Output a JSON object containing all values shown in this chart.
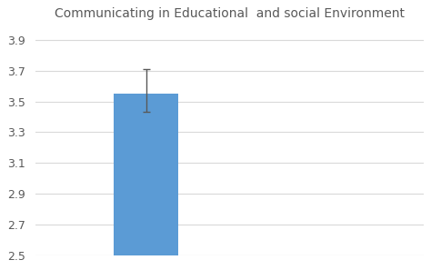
{
  "title": "Communicating in Educational  and social Environment",
  "bar_value": 3.55,
  "error_upper": 0.16,
  "error_lower": 0.12,
  "bar_color": "#5B9BD5",
  "bar_x": 1,
  "bar_width": 0.35,
  "ylim": [
    2.5,
    3.98
  ],
  "yticks": [
    2.5,
    2.7,
    2.9,
    3.1,
    3.3,
    3.5,
    3.7,
    3.9
  ],
  "xlim": [
    0.4,
    2.5
  ],
  "background_color": "#FFFFFF",
  "plot_bg_color": "#FFFFFF",
  "grid_color": "#D9D9D9",
  "title_fontsize": 10,
  "tick_fontsize": 9,
  "title_color": "#595959",
  "tick_color": "#595959",
  "error_color": "#595959"
}
